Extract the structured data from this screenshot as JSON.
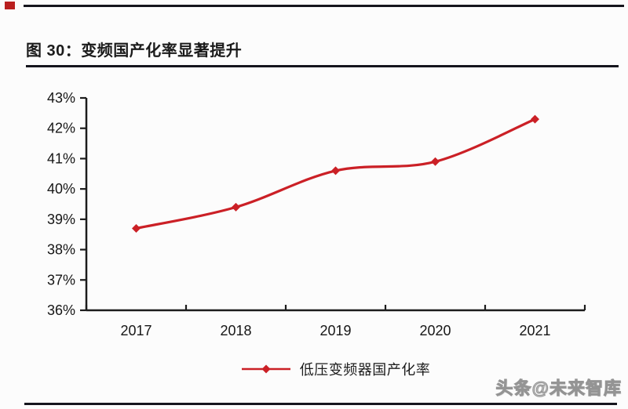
{
  "page": {
    "background_color": "#fcfcfc",
    "bullet_color": "#b91f1f",
    "rule_color": "#15151d",
    "watermark": "头条@未来智库"
  },
  "header": {
    "title": "图 30：变频国产化率显著提升"
  },
  "chart_data": {
    "type": "line",
    "title": "图 30：变频国产化率显著提升",
    "categories": [
      "2017",
      "2018",
      "2019",
      "2020",
      "2021"
    ],
    "series": [
      {
        "name": "低压变频器国产化率",
        "values": [
          38.7,
          39.4,
          40.6,
          40.9,
          42.3
        ],
        "color": "#cb2026",
        "marker": "diamond"
      }
    ],
    "ylim": [
      36,
      43
    ],
    "ytick_step": 1,
    "ytick_labels": [
      "36%",
      "37%",
      "38%",
      "39%",
      "40%",
      "41%",
      "42%",
      "43%"
    ],
    "xlabel": "",
    "ylabel": "",
    "grid": false,
    "legend_position": "bottom",
    "axis_color": "#1c1c1c",
    "smooth": true
  }
}
